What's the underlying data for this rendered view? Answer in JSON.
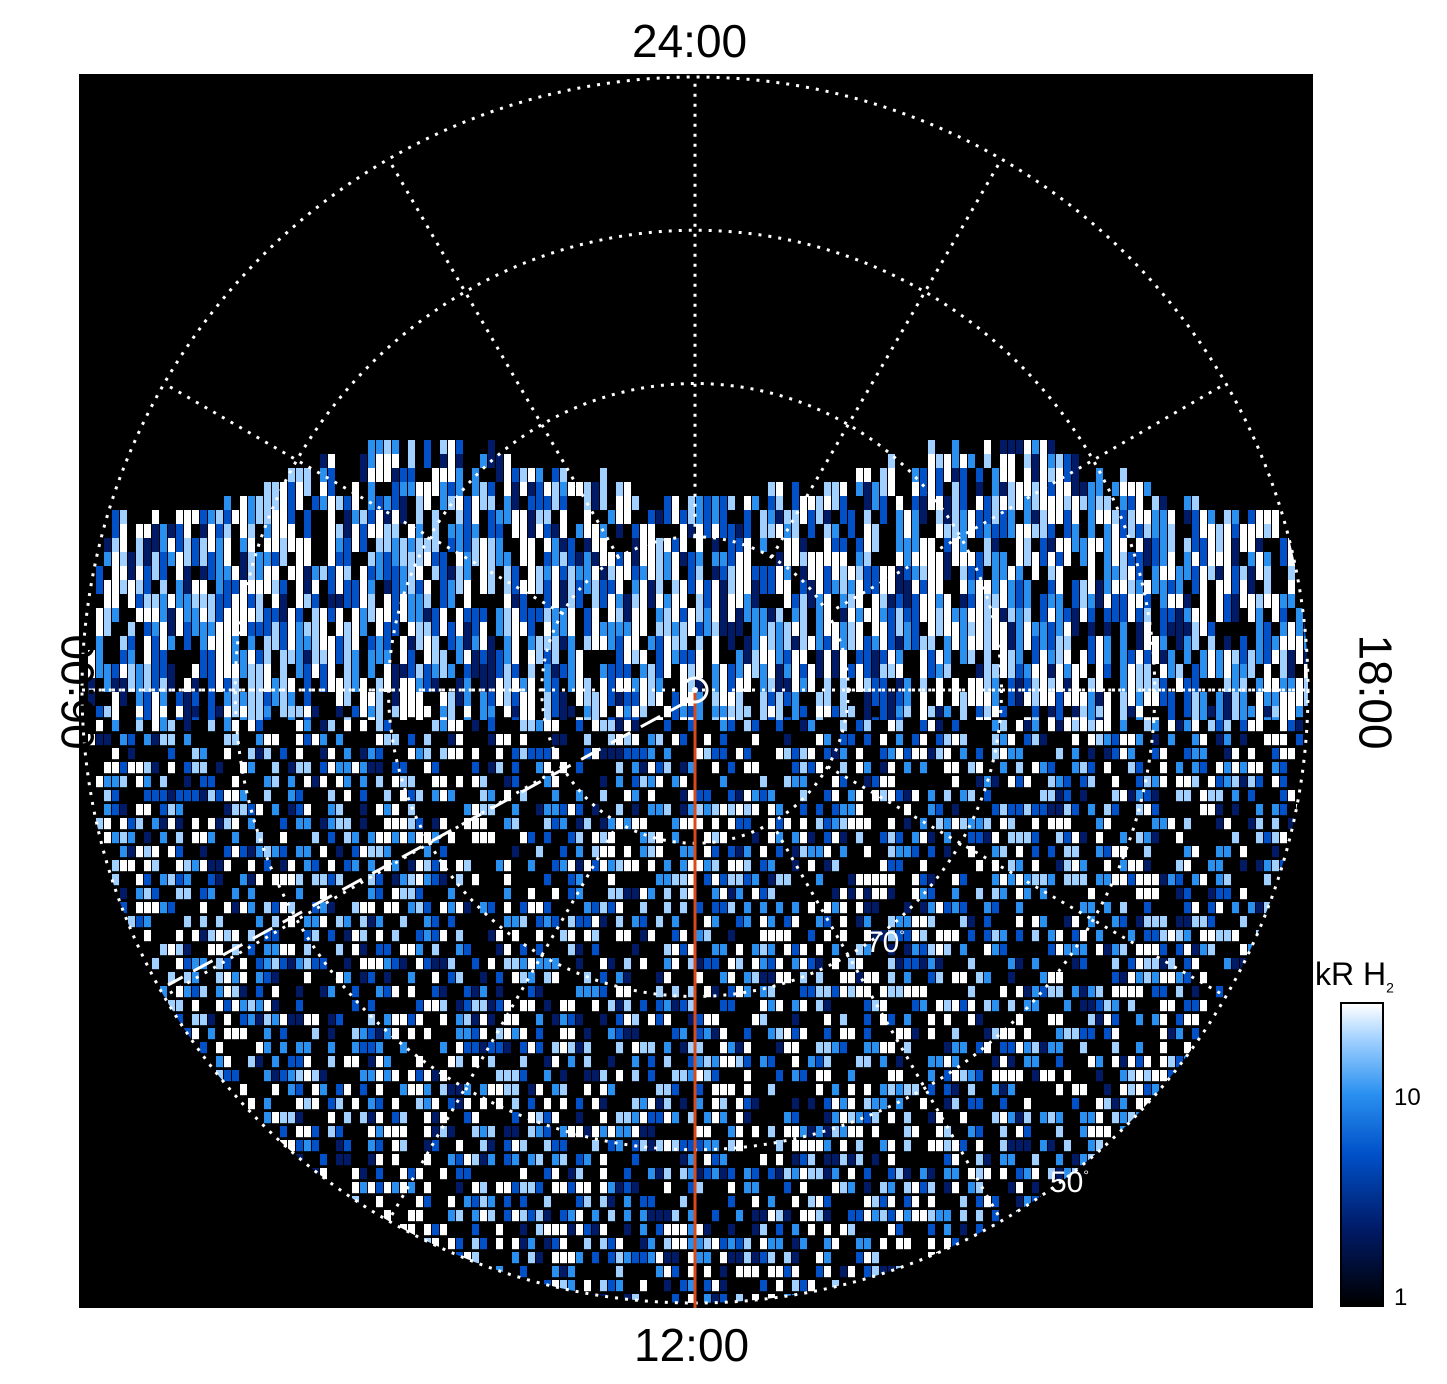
{
  "chart_data": {
    "type": "heatmap",
    "projection": "polar",
    "title": "",
    "local_time_labels": {
      "top": "24:00",
      "bottom": "12:00",
      "left": "06:00",
      "right": "18:00"
    },
    "latitude_labels": [
      {
        "value": 70,
        "text": "70"
      },
      {
        "value": 50,
        "text": "50"
      }
    ],
    "latitude_grid_deg": [
      80,
      70,
      60,
      50
    ],
    "longitude_grid_spacing_hours": 2,
    "colorbar": {
      "label": "kR H",
      "label_subscript": "2",
      "scale": "log",
      "range": [
        1,
        30
      ],
      "tick_labels": [
        "10",
        "1"
      ],
      "colors": [
        "#000000",
        "#001a66",
        "#0050c8",
        "#2a90f0",
        "#9fd0ff",
        "#ffffff"
      ]
    },
    "annotations": {
      "red_line_local_time": "12:00",
      "dashed_line": "white dashed radial line",
      "grid": "on",
      "grid_style": "dotted white"
    }
  },
  "colors": {
    "background": "#000000",
    "grid": "#ffffff",
    "red_line": "#d94a1a"
  }
}
